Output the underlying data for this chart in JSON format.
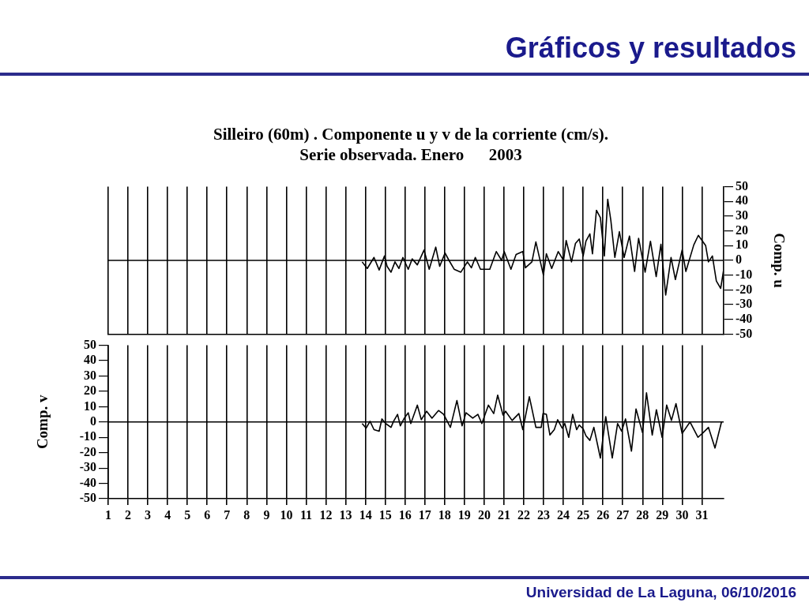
{
  "chart_data": [
    {
      "type": "line",
      "title": "Silleiro (60m) . Componente u y v de la corriente (cm/s).",
      "subtitle": "Serie observada. Enero      2003",
      "ylabel": "Comp. u",
      "annotations": [
        "Gráficos y resultados",
        "Universidad de La Laguna, 06/10/2016"
      ],
      "xlim": [
        1,
        32.1
      ],
      "xticks": [
        1,
        2,
        3,
        4,
        5,
        6,
        7,
        8,
        9,
        10,
        11,
        12,
        13,
        14,
        15,
        16,
        17,
        18,
        19,
        20,
        21,
        22,
        23,
        24,
        25,
        26,
        27,
        28,
        29,
        30,
        31
      ],
      "ylim": [
        -50,
        50
      ],
      "yticks": [
        -50,
        -40,
        -30,
        -20,
        -10,
        0,
        10,
        20,
        30,
        40,
        50
      ],
      "grid": "x",
      "tick_labels": "y",
      "ref_lines": [
        {
          "axis": "y",
          "value": 0
        }
      ],
      "series": [
        {
          "color": "#000000",
          "x": [
            13.83,
            14.09,
            14.43,
            14.69,
            14.96,
            15.09,
            15.29,
            15.49,
            15.69,
            15.89,
            16.16,
            16.36,
            16.62,
            16.96,
            17.22,
            17.55,
            17.75,
            18.02,
            18.22,
            18.48,
            18.82,
            19.15,
            19.35,
            19.55,
            19.81,
            20.28,
            20.61,
            20.88,
            21.01,
            21.35,
            21.61,
            21.95,
            22.08,
            22.41,
            22.61,
            22.99,
            23.14,
            23.41,
            23.74,
            24.01,
            24.14,
            24.41,
            24.61,
            24.8,
            25.0,
            25.14,
            25.34,
            25.47,
            25.67,
            25.87,
            26.07,
            26.24,
            26.4,
            26.6,
            26.83,
            27.07,
            27.34,
            27.6,
            27.8,
            28.13,
            28.4,
            28.69,
            28.93,
            29.17,
            29.44,
            29.66,
            30.0,
            30.19,
            30.59,
            30.82,
            31.19,
            31.33,
            31.53,
            31.73,
            31.95,
            32.09
          ],
          "values": [
            -1,
            -5.5,
            2,
            -6.5,
            3,
            -4,
            -8,
            -1,
            -5.5,
            2,
            -6,
            1,
            -3,
            7,
            -6,
            9,
            -4,
            5,
            0,
            -6,
            -8,
            -1,
            -5,
            2,
            -6,
            -6,
            6,
            0,
            6,
            -6,
            4,
            6,
            -5,
            -1,
            12.5,
            -10,
            4.5,
            -5.5,
            6,
            0,
            13.5,
            -1,
            11.5,
            14.5,
            3,
            13,
            18,
            4.5,
            34,
            29,
            3,
            41.5,
            27,
            2,
            19.5,
            2,
            16.5,
            -7.5,
            15,
            -8,
            13,
            -11,
            11,
            -23.5,
            2,
            -13,
            7,
            -7.5,
            10.5,
            17,
            10,
            -1,
            3,
            -14,
            -19,
            -7
          ]
        }
      ]
    },
    {
      "type": "line",
      "ylabel": "Comp. v",
      "xlim": [
        1,
        32.1
      ],
      "xticks": [
        1,
        2,
        3,
        4,
        5,
        6,
        7,
        8,
        9,
        10,
        11,
        12,
        13,
        14,
        15,
        16,
        17,
        18,
        19,
        20,
        21,
        22,
        23,
        24,
        25,
        26,
        27,
        28,
        29,
        30,
        31
      ],
      "ylim": [
        -50,
        50
      ],
      "yticks": [
        -50,
        -40,
        -30,
        -20,
        -10,
        0,
        10,
        20,
        30,
        40,
        50
      ],
      "grid": "x",
      "ref_lines": [
        {
          "axis": "y",
          "value": 0
        }
      ],
      "series": [
        {
          "color": "#000000",
          "x": [
            13.83,
            14.03,
            14.23,
            14.43,
            14.69,
            14.83,
            15.02,
            15.29,
            15.42,
            15.62,
            15.76,
            15.96,
            16.16,
            16.29,
            16.62,
            16.82,
            17.09,
            17.36,
            17.69,
            17.95,
            18.29,
            18.62,
            18.88,
            19.08,
            19.42,
            19.68,
            19.88,
            20.21,
            20.48,
            20.68,
            20.95,
            21.08,
            21.41,
            21.75,
            21.95,
            22.28,
            22.61,
            22.88,
            22.97,
            23.14,
            23.32,
            23.54,
            23.71,
            23.94,
            24.07,
            24.27,
            24.47,
            24.67,
            24.8,
            25.0,
            25.14,
            25.34,
            25.54,
            25.87,
            26.14,
            26.47,
            26.74,
            26.94,
            27.14,
            27.44,
            27.67,
            28.0,
            28.2,
            28.49,
            28.7,
            28.99,
            29.22,
            29.46,
            29.69,
            30.0,
            30.4,
            30.8,
            31.06,
            31.33,
            31.66,
            31.99
          ],
          "values": [
            -1,
            -4,
            0.5,
            -5,
            -6,
            2,
            -1,
            -3.5,
            0.5,
            5,
            -2.5,
            2.5,
            6,
            -1,
            11,
            1.5,
            7,
            2.5,
            7.5,
            5,
            -3.5,
            14,
            -2.5,
            6,
            2.5,
            5,
            -1,
            11,
            5.5,
            17.5,
            4.5,
            7,
            1,
            5.5,
            -5,
            16.5,
            -3.5,
            -3.5,
            5.5,
            5,
            -8.5,
            -5,
            1.5,
            -4,
            -1,
            -10,
            5,
            -5,
            -2,
            -4.5,
            -9,
            -12,
            -3.5,
            -23.5,
            3.5,
            -23.5,
            -1,
            -6,
            2,
            -19,
            8.5,
            -7,
            19,
            -8.5,
            8,
            -10,
            11,
            1,
            12,
            -7.5,
            0,
            -10,
            -7,
            -3.5,
            -17,
            0
          ]
        }
      ]
    }
  ]
}
